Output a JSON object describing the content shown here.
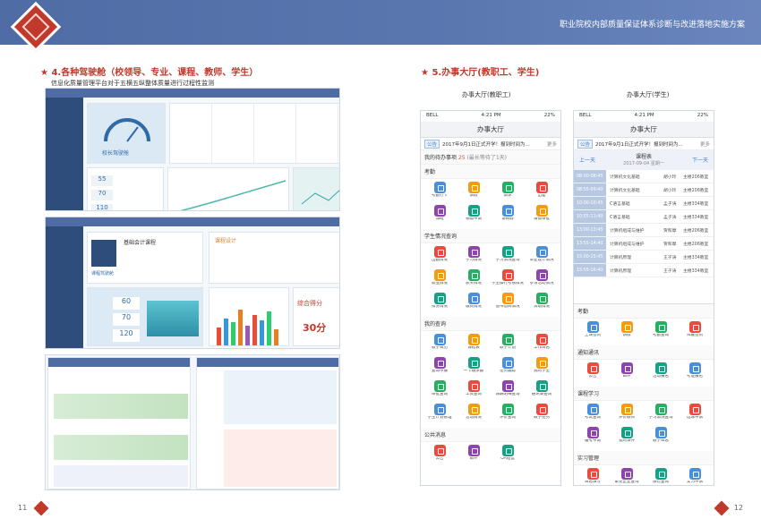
{
  "header": {
    "title": "职业院校内部质量保证体系诊断与改进落地实施方案"
  },
  "left": {
    "section_title": "4.各种驾驶舱（校领导、专业、课程、教师、学生）",
    "caption": "信息化质量管理平台对于五横五纵整体质量进行过程性监测",
    "page_number": "11",
    "shot1": {
      "gauge_label": "校长驾驶舱",
      "stat_cards": [
        "55",
        "70",
        "110"
      ]
    },
    "shot2": {
      "course_label": "课程驾驶舱",
      "left_title": "基础会计课程",
      "right_title": "课程设计",
      "stat1": "60",
      "stat2": "70",
      "stat3": "120",
      "score_title": "综合得分",
      "score_value": "30分"
    }
  },
  "right": {
    "section_title": "5.办事大厅(教职工、学生)",
    "page_number": "12",
    "staff": {
      "caption": "办事大厅(教职工)",
      "status_left": "BELL",
      "time": "4:21 PM",
      "battery": "22%",
      "appbar": "办事大厅",
      "notice_tag": "公告",
      "notice_text": "2017年9月1日正式开学！报到时间为...",
      "notice_more": "更多",
      "todo_label": "我的待办事项",
      "todo_count": "25",
      "todo_hint": "(最长等待了1天)",
      "sections": [
        {
          "title": "考勤",
          "items": [
            "考勤打卡",
            "请假",
            "调休",
            "出差",
            "加班",
            "销假申请",
            "请销假",
            "请假审批"
          ]
        },
        {
          "title": "学生情况查询",
          "items": [
            "出勤情况",
            "学习情况",
            "学习情况查询",
            "毕业设计情况",
            "就业情况",
            "获奖情况",
            "学生操行考核情况",
            "参与活动情况",
            "扣分情况",
            "缴费情况",
            "图书借阅情况",
            "资助情况"
          ]
        },
        {
          "title": "我的查询",
          "items": [
            "教学日历",
            "课程表",
            "教学计划",
            "工作日志",
            "查询申报",
            "一卡通余额",
            "任务跟踪",
            "我的学生",
            "审批查询",
            "工资查询",
            "课酬明细查询",
            "通讯录查询",
            "学生计划管理",
            "活动情况",
            "评价查询",
            "教学任务"
          ]
        },
        {
          "title": "公共消息",
          "items": [
            "公告",
            "邮件",
            "OA短信"
          ]
        }
      ]
    },
    "student": {
      "caption": "办事大厅(学生)",
      "status_left": "BELL",
      "time": "4:21 PM",
      "battery": "22%",
      "appbar": "办事大厅",
      "notice_tag": "公告",
      "notice_text": "2017年9月1日正式开学！报到时间为...",
      "notice_more": "更多",
      "schedule_title": "课程表",
      "schedule_date": "2017-09-04 星期一",
      "prev": "上一天",
      "next": "下一天",
      "schedule": [
        {
          "time": "08:00-08:45",
          "course": "计算机文化基础",
          "teacher": "胡小玲",
          "room": "主楼206教室"
        },
        {
          "time": "08:55-09:40",
          "course": "计算机文化基础",
          "teacher": "胡小玲",
          "room": "主楼206教室"
        },
        {
          "time": "10:00-10:45",
          "course": "C语言基础",
          "teacher": "孟子涛",
          "room": "主楼334教室"
        },
        {
          "time": "10:55-11:40",
          "course": "C语言基础",
          "teacher": "孟子涛",
          "room": "主楼334教室"
        },
        {
          "time": "13:00-13:45",
          "course": "计算机组成与维护",
          "teacher": "贺和摩",
          "room": "主楼206教室"
        },
        {
          "time": "13:55-14:40",
          "course": "计算机组成与维护",
          "teacher": "贺和摩",
          "room": "主楼206教室"
        },
        {
          "time": "15:00-15:45",
          "course": "计算机原理",
          "teacher": "王子涛",
          "room": "主楼334教室"
        },
        {
          "time": "15:55-16:40",
          "course": "计算机原理",
          "teacher": "王子涛",
          "room": "主楼334教室"
        }
      ],
      "sections": [
        {
          "title": "考勤",
          "items": [
            "上课签到",
            "请假",
            "考勤查询",
            "归寝签到"
          ]
        },
        {
          "title": "通知通讯",
          "items": [
            "公告",
            "邮件",
            "活动报名",
            "考证报名"
          ]
        },
        {
          "title": "课程学习",
          "items": [
            "考试查询",
            "评价教师",
            "学习情况查询",
            "选课申请",
            "缓考申请",
            "我的课件",
            "教学日志"
          ]
        },
        {
          "title": "实习管理",
          "items": [
            "日志填写",
            "家更企业查询",
            "保险查询",
            "实习申请"
          ]
        }
      ]
    }
  },
  "colors": {
    "brand": "#4f6ca5",
    "accent": "#c0392b",
    "icon_palette": [
      "#4a90d9",
      "#f39c12",
      "#27ae60",
      "#e74c3c",
      "#8e44ad",
      "#16a085"
    ]
  }
}
